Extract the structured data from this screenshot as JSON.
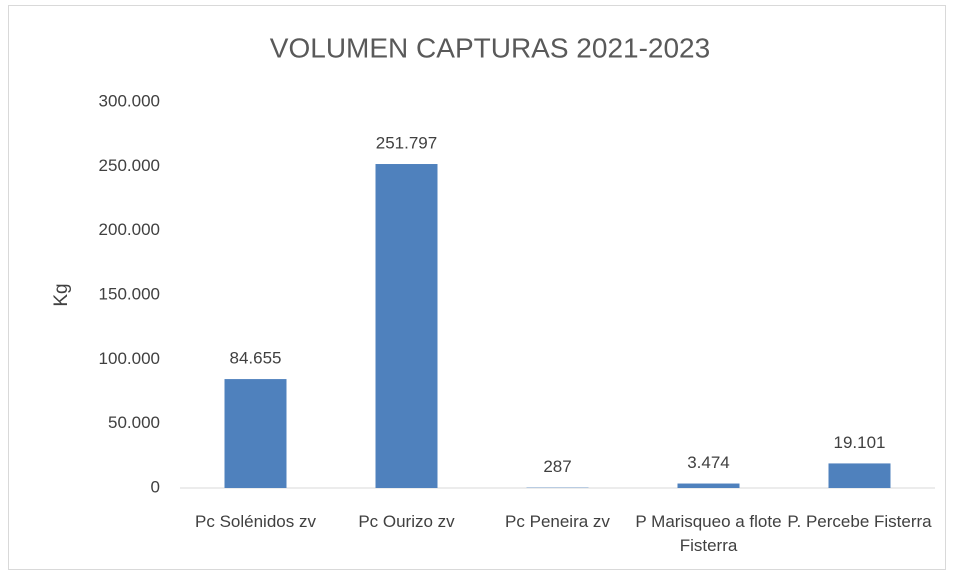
{
  "chart_data": {
    "type": "bar",
    "title": "VOLUMEN CAPTURAS 2021-2023",
    "ylabel": "Kg",
    "categories": [
      "Pc Solénidos zv",
      "Pc Ourizo zv",
      "Pc Peneira zv",
      "P Marisqueo a flote Fisterra",
      "P. Percebe Fisterra"
    ],
    "values": [
      84655,
      251797,
      287,
      3474,
      19101
    ],
    "value_labels": [
      "84.655",
      "251.797",
      "287",
      "3.474",
      "19.101"
    ],
    "color": "#4f81bd",
    "ylim": [
      0,
      300000
    ],
    "yticks": [
      0,
      {
        "value": 50000,
        "label": "50.000"
      },
      {
        "value": 100000,
        "label": "100.000"
      },
      {
        "value": 150000,
        "label": "150.000"
      },
      {
        "value": 200000,
        "label": "200.000"
      },
      {
        "value": 250000,
        "label": "250.000"
      },
      {
        "value": 300000,
        "label": "300.000"
      }
    ],
    "grid": false
  }
}
